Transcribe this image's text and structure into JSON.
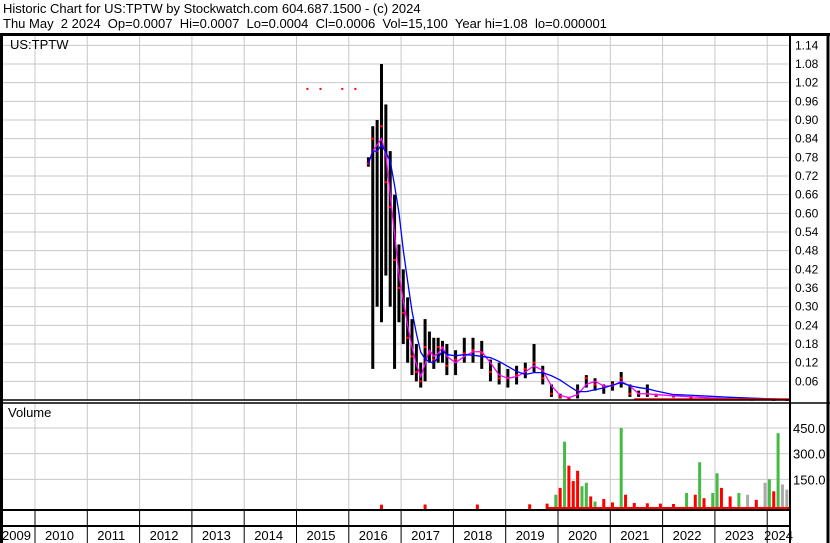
{
  "header": {
    "title": "Historic Chart for US:TPTW by Stockwatch.com 604.687.1500 - (c) 2024",
    "quote_line": "Thu May  2 2024  Op=0.0007  Hi=0.0007  Lo=0.0004  Cl=0.0006  Vol=15,100  Year hi=1.08  lo=0.000001"
  },
  "chart_data": [
    {
      "type": "line",
      "panel": "price",
      "symbol_label": "US:TPTW",
      "ylim": [
        0,
        1.17
      ],
      "y_ticks": [
        "1.14",
        "1.08",
        "1.02",
        "0.96",
        "0.90",
        "0.84",
        "0.78",
        "0.72",
        "0.66",
        "0.60",
        "0.54",
        "0.48",
        "0.42",
        "0.36",
        "0.30",
        "0.24",
        "0.18",
        "0.12",
        "0.06"
      ],
      "x_ticks": [
        "2009",
        "2010",
        "2011",
        "2012",
        "2013",
        "2014",
        "2015",
        "2016",
        "2017",
        "2018",
        "2019",
        "2020",
        "2021",
        "2022",
        "2023",
        "2024"
      ],
      "grid": true,
      "colors": {
        "bars": "#000000",
        "close": "#ff0000",
        "ma_short": "#ff00ff",
        "ma_long": "#0000ff"
      },
      "isolated_points": [
        [
          "2015-03",
          1.0
        ],
        [
          "2015-06",
          1.0
        ],
        [
          "2015-11",
          1.0
        ],
        [
          "2016-02",
          1.0
        ]
      ],
      "ohlc": [
        [
          "2016-05",
          0.78,
          0.75,
          0.76
        ],
        [
          "2016-06",
          0.88,
          0.1,
          0.84
        ],
        [
          "2016-07",
          0.9,
          0.3,
          0.8
        ],
        [
          "2016-08",
          1.08,
          0.25,
          0.88
        ],
        [
          "2016-09",
          0.95,
          0.4,
          0.7
        ],
        [
          "2016-10",
          0.8,
          0.3,
          0.62
        ],
        [
          "2016-11",
          0.66,
          0.1,
          0.45
        ],
        [
          "2016-12",
          0.5,
          0.25,
          0.36
        ],
        [
          "2017-01",
          0.42,
          0.18,
          0.28
        ],
        [
          "2017-02",
          0.33,
          0.12,
          0.2
        ],
        [
          "2017-03",
          0.26,
          0.08,
          0.14
        ],
        [
          "2017-04",
          0.18,
          0.06,
          0.09
        ],
        [
          "2017-05",
          0.12,
          0.04,
          0.06
        ],
        [
          "2017-06",
          0.26,
          0.06,
          0.17
        ],
        [
          "2017-07",
          0.22,
          0.12,
          0.15
        ],
        [
          "2017-08",
          0.2,
          0.1,
          0.13
        ],
        [
          "2017-09",
          0.2,
          0.12,
          0.17
        ],
        [
          "2017-10",
          0.19,
          0.12,
          0.17
        ],
        [
          "2017-11",
          0.18,
          0.08,
          0.11
        ],
        [
          "2018-01",
          0.16,
          0.08,
          0.13
        ],
        [
          "2018-03",
          0.2,
          0.12,
          0.15
        ],
        [
          "2018-05",
          0.2,
          0.12,
          0.16
        ],
        [
          "2018-07",
          0.19,
          0.1,
          0.15
        ],
        [
          "2018-09",
          0.13,
          0.06,
          0.09
        ],
        [
          "2018-11",
          0.12,
          0.05,
          0.07
        ],
        [
          "2019-01",
          0.1,
          0.04,
          0.07
        ],
        [
          "2019-03",
          0.11,
          0.05,
          0.08
        ],
        [
          "2019-05",
          0.12,
          0.07,
          0.1
        ],
        [
          "2019-07",
          0.18,
          0.09,
          0.12
        ],
        [
          "2019-09",
          0.11,
          0.05,
          0.07
        ],
        [
          "2019-11",
          0.05,
          0.01,
          0.02
        ],
        [
          "2020-01",
          0.02,
          0.005,
          0.01
        ],
        [
          "2020-03",
          0.01,
          0.003,
          0.005
        ],
        [
          "2020-05",
          0.05,
          0.005,
          0.03
        ],
        [
          "2020-07",
          0.08,
          0.04,
          0.07
        ],
        [
          "2020-09",
          0.07,
          0.03,
          0.05
        ],
        [
          "2020-11",
          0.05,
          0.02,
          0.04
        ],
        [
          "2021-01",
          0.06,
          0.03,
          0.05
        ],
        [
          "2021-03",
          0.09,
          0.04,
          0.07
        ],
        [
          "2021-05",
          0.05,
          0.01,
          0.02
        ],
        [
          "2021-07",
          0.03,
          0.01,
          0.02
        ],
        [
          "2021-09",
          0.05,
          0.01,
          0.02
        ],
        [
          "2021-11",
          0.02,
          0.01,
          0.015
        ],
        [
          "2022-03",
          0.015,
          0.008,
          0.012
        ],
        [
          "2022-07",
          0.012,
          0.005,
          0.009
        ],
        [
          "2022-11",
          0.008,
          0.002,
          0.005
        ],
        [
          "2023-04",
          0.004,
          0.001,
          0.002
        ],
        [
          "2023-09",
          0.002,
          0.0005,
          0.001
        ],
        [
          "2024-02",
          0.001,
          0.0004,
          0.0007
        ],
        [
          "2024-05",
          0.0007,
          0.0004,
          0.0006
        ]
      ]
    },
    {
      "type": "bar",
      "panel": "volume",
      "title": "Volume",
      "ylim": [
        0,
        560
      ],
      "y_ticks": [
        "450.0",
        "300.0",
        "150.0"
      ],
      "colors": {
        "up": "#44bb44",
        "down": "#ff0000",
        "flat": "#aaaaaa"
      },
      "bars": [
        [
          "2016-08",
          2,
          "down"
        ],
        [
          "2017-06",
          3,
          "down"
        ],
        [
          "2018-06",
          3,
          "down"
        ],
        [
          "2019-06",
          4,
          "down"
        ],
        [
          "2019-10",
          8,
          "down"
        ],
        [
          "2019-12",
          60,
          "up"
        ],
        [
          "2020-01",
          100,
          "down"
        ],
        [
          "2020-02",
          370,
          "up"
        ],
        [
          "2020-03",
          230,
          "down"
        ],
        [
          "2020-04",
          140,
          "down"
        ],
        [
          "2020-05",
          200,
          "down"
        ],
        [
          "2020-06",
          110,
          "up"
        ],
        [
          "2020-07",
          130,
          "up"
        ],
        [
          "2020-08",
          50,
          "down"
        ],
        [
          "2020-09",
          20,
          "up"
        ],
        [
          "2020-11",
          35,
          "down"
        ],
        [
          "2021-01",
          15,
          "down"
        ],
        [
          "2021-03",
          450,
          "up"
        ],
        [
          "2021-04",
          60,
          "down"
        ],
        [
          "2021-06",
          12,
          "down"
        ],
        [
          "2021-09",
          10,
          "down"
        ],
        [
          "2021-12",
          8,
          "down"
        ],
        [
          "2022-03",
          6,
          "down"
        ],
        [
          "2022-06",
          70,
          "up"
        ],
        [
          "2022-08",
          60,
          "down"
        ],
        [
          "2022-09",
          250,
          "up"
        ],
        [
          "2022-10",
          40,
          "down"
        ],
        [
          "2022-12",
          70,
          "up"
        ],
        [
          "2023-01",
          185,
          "up"
        ],
        [
          "2023-02",
          100,
          "down"
        ],
        [
          "2023-04",
          50,
          "down"
        ],
        [
          "2023-06",
          70,
          "up"
        ],
        [
          "2023-08",
          60,
          "flat"
        ],
        [
          "2023-10",
          30,
          "down"
        ],
        [
          "2023-12",
          130,
          "flat"
        ],
        [
          "2024-01",
          150,
          "up"
        ],
        [
          "2024-02",
          80,
          "down"
        ],
        [
          "2024-03",
          420,
          "up"
        ],
        [
          "2024-04",
          120,
          "flat"
        ],
        [
          "2024-05",
          90,
          "flat"
        ]
      ]
    }
  ]
}
